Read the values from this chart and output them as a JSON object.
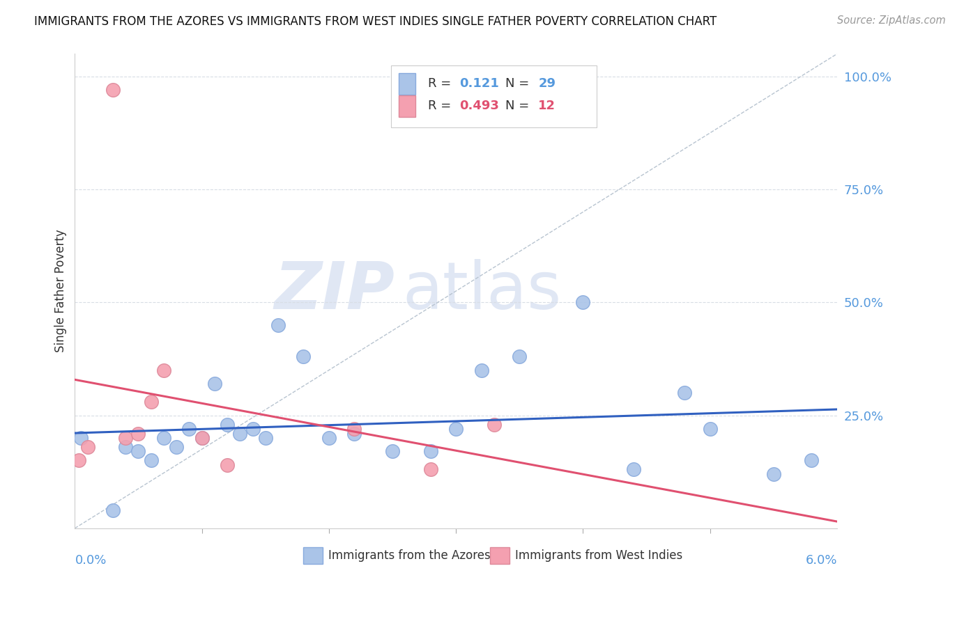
{
  "title": "IMMIGRANTS FROM THE AZORES VS IMMIGRANTS FROM WEST INDIES SINGLE FATHER POVERTY CORRELATION CHART",
  "source": "Source: ZipAtlas.com",
  "ylabel": "Single Father Poverty",
  "ylabel_right_ticks": [
    "100.0%",
    "75.0%",
    "50.0%",
    "25.0%"
  ],
  "ylabel_right_vals": [
    1.0,
    0.75,
    0.5,
    0.25
  ],
  "legend_label1": "Immigrants from the Azores",
  "legend_label2": "Immigrants from West Indies",
  "R1": 0.121,
  "N1": 29,
  "R2": 0.493,
  "N2": 12,
  "color1": "#aac4e8",
  "color2": "#f4a0b0",
  "line_color1": "#3060c0",
  "line_color2": "#e05070",
  "watermark_zip": "ZIP",
  "watermark_atlas": "atlas",
  "azores_x": [
    0.0005,
    0.003,
    0.004,
    0.005,
    0.006,
    0.007,
    0.008,
    0.009,
    0.01,
    0.011,
    0.012,
    0.013,
    0.014,
    0.015,
    0.016,
    0.018,
    0.02,
    0.022,
    0.025,
    0.028,
    0.03,
    0.032,
    0.035,
    0.04,
    0.044,
    0.048,
    0.05,
    0.055,
    0.058
  ],
  "azores_y": [
    0.2,
    0.04,
    0.18,
    0.17,
    0.15,
    0.2,
    0.18,
    0.22,
    0.2,
    0.32,
    0.23,
    0.21,
    0.22,
    0.2,
    0.45,
    0.38,
    0.2,
    0.21,
    0.17,
    0.17,
    0.22,
    0.35,
    0.38,
    0.5,
    0.13,
    0.3,
    0.22,
    0.12,
    0.15
  ],
  "westindies_x": [
    0.0003,
    0.001,
    0.003,
    0.004,
    0.005,
    0.006,
    0.007,
    0.01,
    0.012,
    0.022,
    0.028,
    0.033
  ],
  "westindies_y": [
    0.15,
    0.18,
    0.97,
    0.2,
    0.21,
    0.28,
    0.35,
    0.2,
    0.14,
    0.22,
    0.13,
    0.23
  ],
  "xlim": [
    0.0,
    0.06
  ],
  "ylim": [
    0.0,
    1.05
  ],
  "xlim_display": [
    0.0,
    0.06
  ]
}
